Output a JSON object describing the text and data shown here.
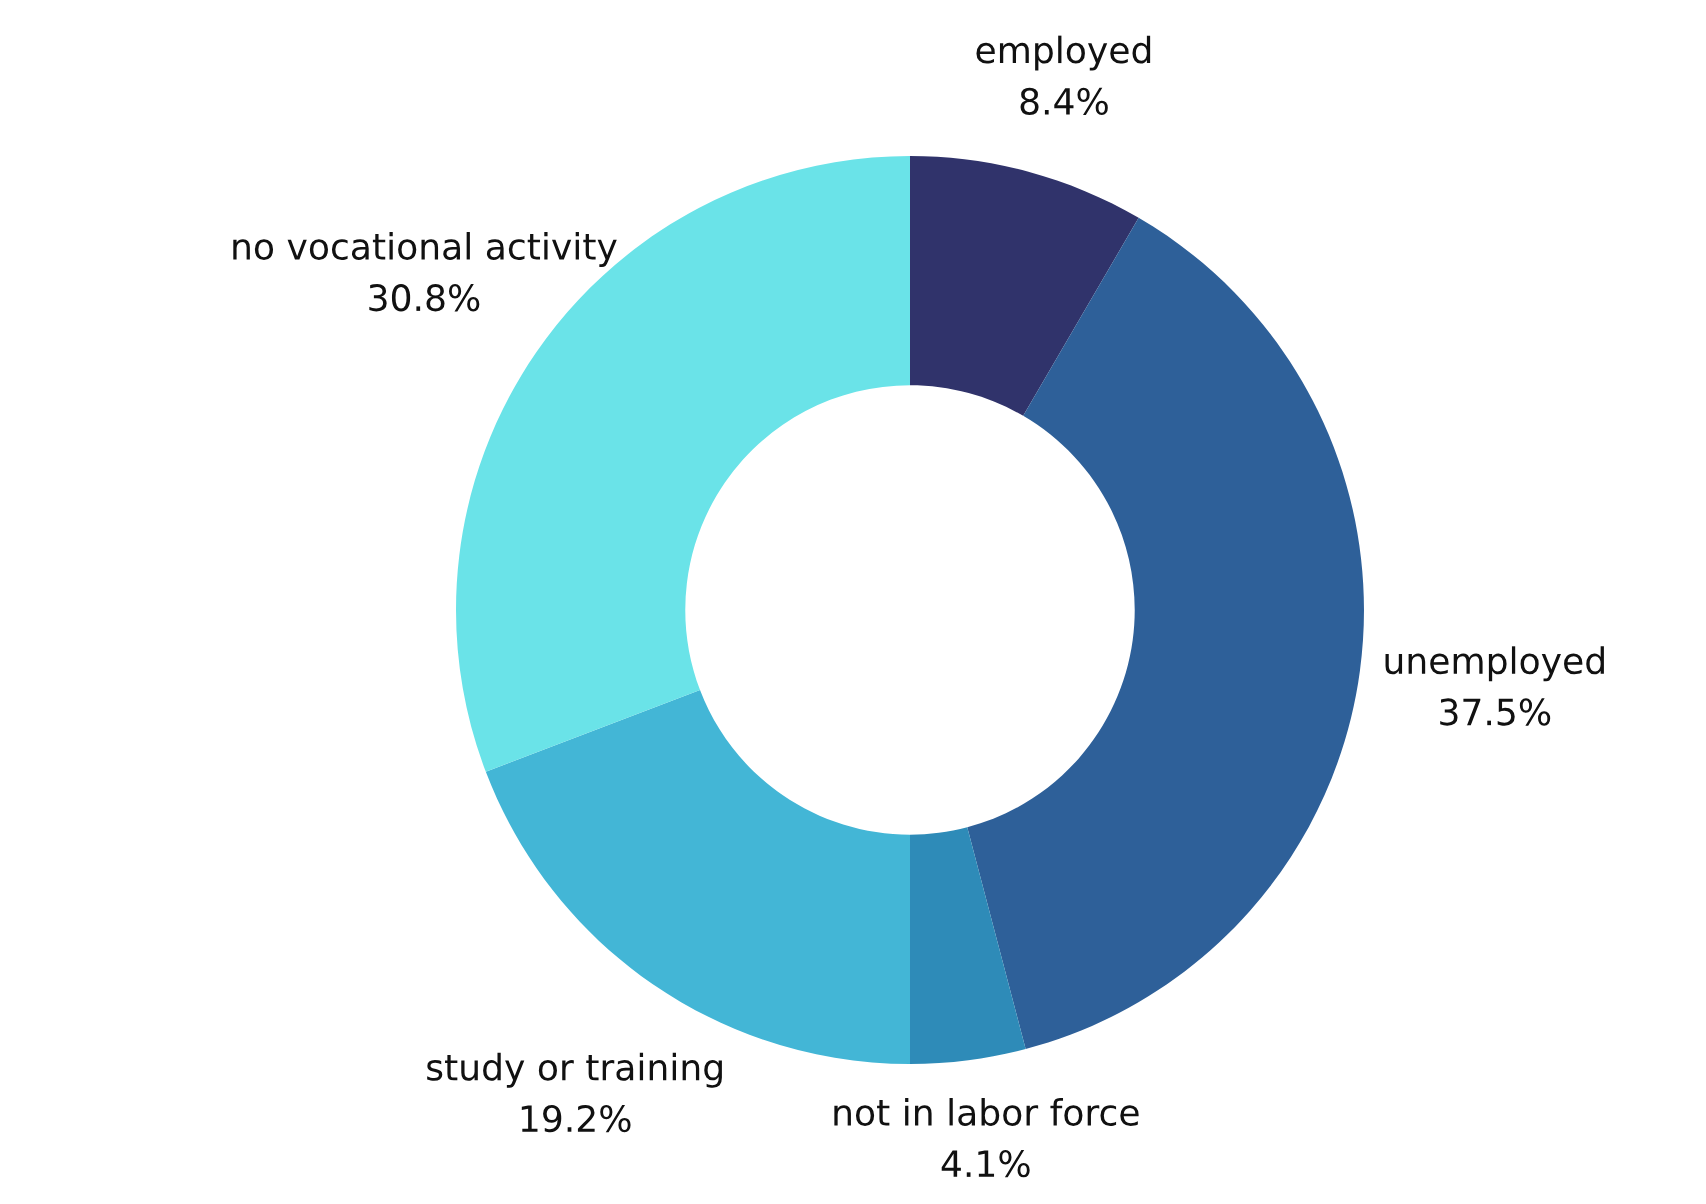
{
  "chart_data": {
    "type": "donut",
    "categories": [
      "employed",
      "unemployed",
      "not in labor force",
      "study or training",
      "no vocational activity"
    ],
    "values": [
      8.4,
      37.5,
      4.1,
      19.2,
      30.8
    ],
    "value_labels": [
      "8.4%",
      "37.5%",
      "4.1%",
      "19.2%",
      "30.8%"
    ],
    "colors": [
      "#30336b",
      "#2e6099",
      "#2e8bb8",
      "#43b6d6",
      "#6ae3e8"
    ],
    "legend": false
  }
}
